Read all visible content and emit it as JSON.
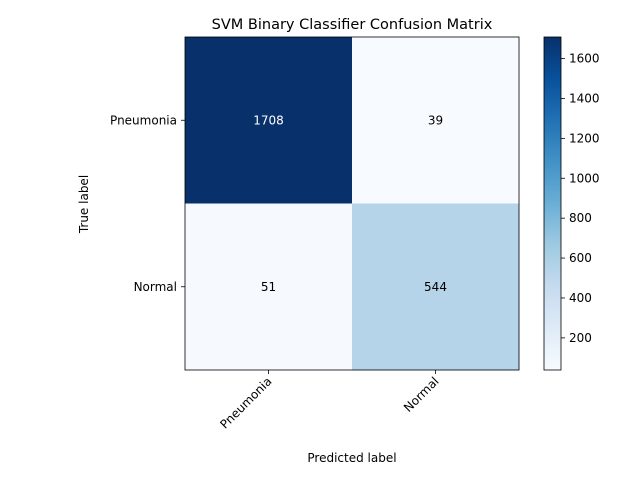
{
  "chart_data": {
    "type": "heatmap",
    "title": "SVM Binary Classifier Confusion Matrix",
    "xlabel": "Predicted label",
    "ylabel": "True label",
    "row_labels": [
      "Pneumonia",
      "Normal"
    ],
    "col_labels": [
      "Pneumonia",
      "Normal"
    ],
    "values": [
      [
        1708,
        39
      ],
      [
        51,
        544
      ]
    ],
    "colorbar": {
      "min": 39,
      "max": 1708,
      "ticks": [
        200,
        400,
        600,
        800,
        1000,
        1200,
        1400,
        1600
      ]
    },
    "colormap": "Blues",
    "colors": {
      "low": "#f7fbff",
      "high": "#08306b",
      "text_dark_bg": "#ffffff",
      "text_light_bg": "#000000"
    }
  }
}
